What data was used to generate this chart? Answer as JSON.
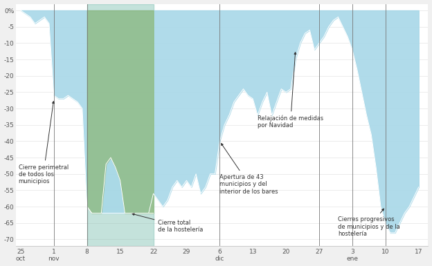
{
  "background_color": "#f0f0f0",
  "plot_bg": "#ffffff",
  "light_blue": "#a8d8e8",
  "teal_bg": "#7dbfb0",
  "green_fill": "#8db87a",
  "ylim": [
    -72,
    2
  ],
  "yticks": [
    0,
    -5,
    -10,
    -15,
    -20,
    -25,
    -30,
    -35,
    -40,
    -45,
    -50,
    -55,
    -60,
    -65,
    -70
  ],
  "x_labels": [
    "25\noct",
    "1\nnov",
    "8",
    "15",
    "22",
    "29",
    "6\ndic",
    "13",
    "20",
    "27",
    "3\nene",
    "10",
    "17"
  ],
  "x_positions": [
    0,
    7,
    14,
    21,
    28,
    35,
    42,
    49,
    56,
    63,
    70,
    77,
    84
  ],
  "vline_positions": [
    7,
    14,
    42,
    63,
    70,
    77
  ],
  "green_xstart": 14,
  "green_xend": 28,
  "blue_series": [
    0,
    -1,
    -2,
    -4,
    -3,
    -2,
    -4,
    -26,
    -27,
    -27,
    -26,
    -27,
    -28,
    -30,
    -60,
    -62,
    -62,
    -62,
    -62,
    -62,
    -62,
    -62,
    -62,
    -62,
    -62,
    -62,
    -62,
    -62,
    -56,
    -58,
    -60,
    -58,
    -54,
    -52,
    -54,
    -52,
    -54,
    -50,
    -56,
    -54,
    -50,
    -50,
    -40,
    -35,
    -32,
    -28,
    -26,
    -24,
    -26,
    -27,
    -32,
    -28,
    -25,
    -32,
    -28,
    -24,
    -25,
    -24,
    -15,
    -10,
    -7,
    -6,
    -12,
    -10,
    -8,
    -5,
    -3,
    -2,
    -5,
    -8,
    -12,
    -18,
    -25,
    -32,
    -38,
    -48,
    -60,
    -65,
    -68,
    -68,
    -65,
    -62,
    -60,
    -57,
    -54
  ],
  "green_data_x": [
    14,
    15,
    16,
    17,
    18,
    19,
    20,
    21,
    22,
    23,
    24,
    25,
    26,
    27,
    28
  ],
  "green_data_y": [
    -60,
    -62,
    -62,
    -62,
    -47,
    -45,
    -48,
    -52,
    -62,
    -62,
    -62,
    -62,
    -62,
    -62,
    -62
  ]
}
